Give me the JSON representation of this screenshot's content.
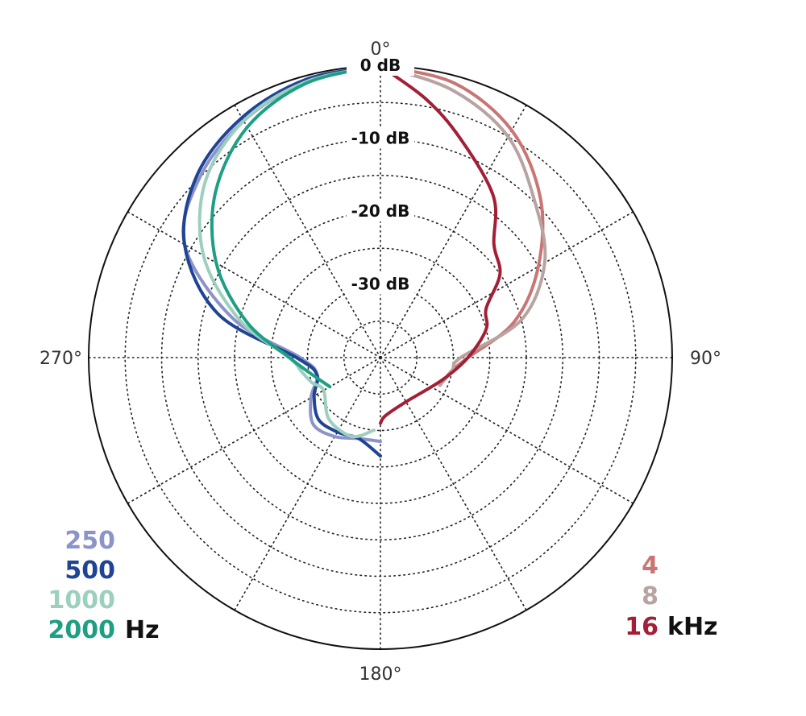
{
  "chart_data": {
    "type": "polar-line",
    "angle_labels": [
      {
        "angle": 0,
        "label": "0°"
      },
      {
        "angle": 90,
        "label": "90°"
      },
      {
        "angle": 180,
        "label": "180°"
      },
      {
        "angle": 270,
        "label": "270°"
      }
    ],
    "radial_axis": {
      "unit": "dB",
      "min": -40,
      "max": 0,
      "ticks": [
        0,
        -5,
        -10,
        -15,
        -20,
        -25,
        -30,
        -35
      ],
      "labeled_ticks": [
        {
          "value": 0,
          "label": "0 dB"
        },
        {
          "value": -10,
          "label": "-10 dB"
        },
        {
          "value": -20,
          "label": "-20 dB"
        },
        {
          "value": -30,
          "label": "-30 dB"
        }
      ]
    },
    "angular_grid_step_deg": 30,
    "grid": true,
    "legends": [
      {
        "placement": "bottom-left",
        "unit": "Hz",
        "entries": [
          {
            "label": "250",
            "color": "#8c93c9"
          },
          {
            "label": "500",
            "color": "#1f4494"
          },
          {
            "label": "1000",
            "color": "#9dcfbf"
          },
          {
            "label": "2000",
            "color": "#1e9f83"
          }
        ]
      },
      {
        "placement": "bottom-right",
        "unit": "kHz",
        "entries": [
          {
            "label": "4",
            "color": "#c97574"
          },
          {
            "label": "8",
            "color": "#b8a3a1"
          },
          {
            "label": "16",
            "color": "#a31f35"
          }
        ]
      }
    ],
    "series": [
      {
        "name": "250",
        "color": "#8c93c9",
        "angles": [
          0,
          15,
          30,
          45,
          60,
          75,
          90,
          105,
          120,
          135,
          150,
          165,
          180
        ],
        "values": [
          0,
          -0.8,
          -2.5,
          -5,
          -9,
          -19,
          -29,
          -31,
          -29,
          -27,
          -27.5,
          -28.5,
          -28.5
        ]
      },
      {
        "name": "500",
        "color": "#1f4494",
        "angles": [
          0,
          15,
          30,
          45,
          60,
          75,
          90,
          105,
          120,
          135,
          150,
          165,
          180
        ],
        "values": [
          0,
          -0.5,
          -2,
          -4.5,
          -9,
          -17,
          -28.5,
          -31,
          -29.5,
          -28,
          -28.2,
          -28.5,
          -26.5
        ]
      },
      {
        "name": "1000",
        "color": "#9dcfbf",
        "angles": [
          0,
          15,
          30,
          45,
          60,
          75,
          90,
          100,
          110,
          120,
          140,
          160,
          175
        ],
        "values": [
          0,
          -0.8,
          -2.5,
          -6,
          -12,
          -20,
          -27.5,
          -29,
          -30,
          -31,
          -29,
          -28.5,
          -30
        ]
      },
      {
        "name": "2000",
        "color": "#1e9f83",
        "angles": [
          0,
          15,
          30,
          45,
          60,
          75,
          90,
          105,
          120
        ],
        "values": [
          0,
          -1,
          -3.5,
          -8,
          -14,
          -21,
          -27.5,
          -30.5,
          -32
        ]
      },
      {
        "name": "4",
        "color": "#c97574",
        "angles": [
          0,
          15,
          30,
          45,
          60,
          75,
          90,
          100,
          115
        ],
        "values": [
          0,
          -1,
          -4,
          -9,
          -15,
          -21,
          -28,
          -30,
          -31
        ]
      },
      {
        "name": "8",
        "color": "#b8a3a1",
        "angles": [
          0,
          15,
          30,
          45,
          60,
          75,
          90,
          100,
          115
        ],
        "values": [
          0,
          -2,
          -5,
          -10,
          -14,
          -20,
          -29,
          -30,
          -31
        ]
      },
      {
        "name": "16",
        "color": "#a31f35",
        "angles": [
          0,
          10,
          20,
          35,
          45,
          55,
          65,
          75,
          90,
          110,
          150,
          175,
          180
        ],
        "values": [
          0,
          -4,
          -8,
          -13,
          -18,
          -20,
          -24,
          -25,
          -28,
          -31,
          -33,
          -32,
          -31
        ]
      }
    ]
  }
}
